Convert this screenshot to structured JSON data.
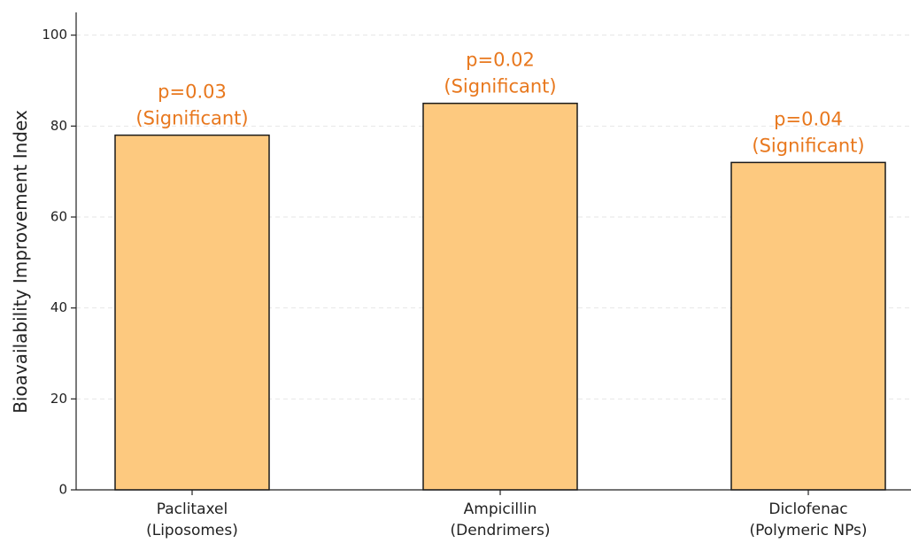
{
  "chart_data": {
    "type": "bar",
    "title": "",
    "xlabel": "",
    "ylabel": "Bioavailability Improvement Index",
    "ylim": [
      0,
      105
    ],
    "yticks": [
      0,
      20,
      40,
      60,
      80,
      100
    ],
    "grid": true,
    "categories": [
      [
        "Paclitaxel",
        "(Liposomes)"
      ],
      [
        "Ampicillin",
        "(Dendrimers)"
      ],
      [
        "Diclofenac",
        "(Polymeric NPs)"
      ]
    ],
    "values": [
      78,
      85,
      72
    ],
    "annotations": [
      [
        "p=0.03",
        "(Significant)"
      ],
      [
        "p=0.02",
        "(Significant)"
      ],
      [
        "p=0.04",
        "(Significant)"
      ]
    ],
    "colors": {
      "bar_fill": "#FDC97F",
      "bar_edge": "#1a1a1a",
      "annotation": "#E8781E",
      "grid": "#e6e6e6",
      "axis": "#222222",
      "text": "#222222"
    }
  }
}
